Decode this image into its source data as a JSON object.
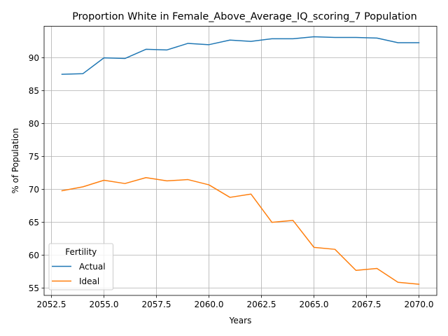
{
  "chart_data": {
    "type": "line",
    "title": "Proportion White in Female_Above_Average_IQ_scoring_7 Population",
    "xlabel": "Years",
    "ylabel": "% of Population",
    "xlim": [
      2052.15,
      2070.85
    ],
    "ylim": [
      53.9,
      94.8
    ],
    "xticks": [
      2052.5,
      2055.0,
      2057.5,
      2060.0,
      2062.5,
      2065.0,
      2067.5,
      2070.0
    ],
    "xtick_labels": [
      "2052.5",
      "2055.0",
      "2057.5",
      "2060.0",
      "2062.5",
      "2065.0",
      "2067.5",
      "2070.0"
    ],
    "yticks": [
      55,
      60,
      65,
      70,
      75,
      80,
      85,
      90
    ],
    "ytick_labels": [
      "55",
      "60",
      "65",
      "70",
      "75",
      "80",
      "85",
      "90"
    ],
    "grid": true,
    "legend": {
      "title": "Fertility",
      "placement": "lower-left"
    },
    "x": [
      2053,
      2054,
      2055,
      2056,
      2057,
      2058,
      2059,
      2060,
      2061,
      2062,
      2063,
      2064,
      2065,
      2066,
      2067,
      2068,
      2069,
      2070
    ],
    "series": [
      {
        "name": "Actual",
        "color": "#1f77b4",
        "values": [
          87.5,
          87.6,
          90.0,
          89.9,
          91.3,
          91.2,
          92.2,
          92.0,
          92.7,
          92.5,
          92.9,
          92.9,
          93.2,
          93.1,
          93.1,
          93.0,
          92.3,
          92.3
        ]
      },
      {
        "name": "Ideal",
        "color": "#ff7f0e",
        "values": [
          69.8,
          70.4,
          71.4,
          70.9,
          71.8,
          71.3,
          71.5,
          70.7,
          68.8,
          69.3,
          65.0,
          65.3,
          61.2,
          60.9,
          57.7,
          58.0,
          55.9,
          55.6
        ]
      }
    ]
  }
}
